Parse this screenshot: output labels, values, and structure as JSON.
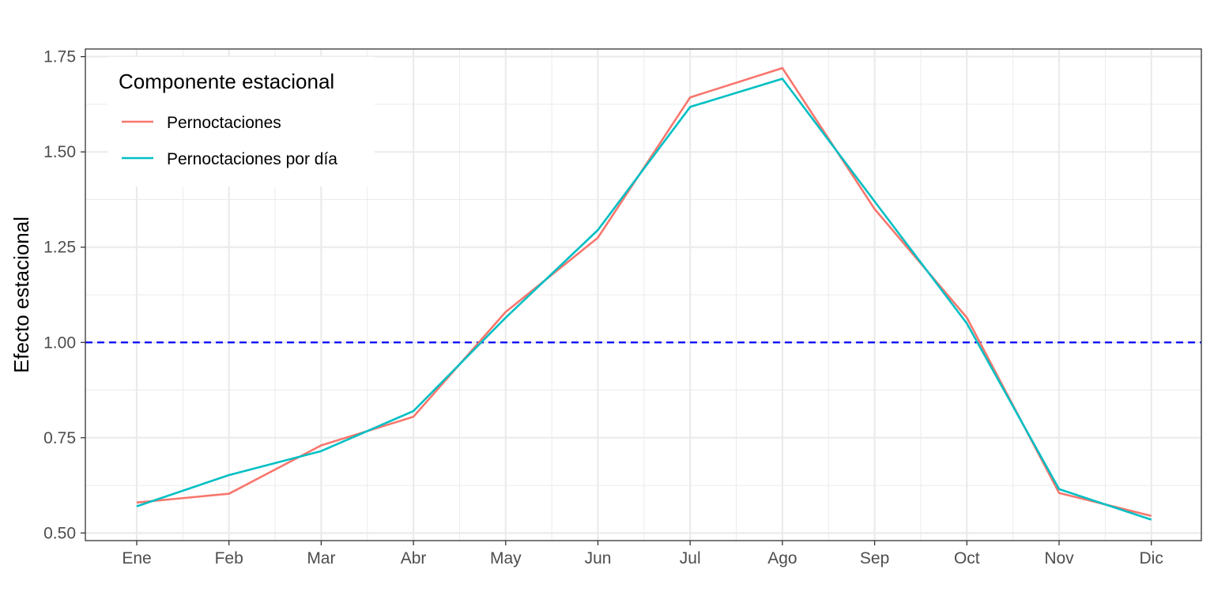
{
  "chart_data": {
    "type": "line",
    "ylabel": "Efecto estacional",
    "xlabel": "",
    "categories": [
      "Ene",
      "Feb",
      "Mar",
      "Abr",
      "May",
      "Jun",
      "Jul",
      "Ago",
      "Sep",
      "Oct",
      "Nov",
      "Dic"
    ],
    "ylim": [
      0.48,
      1.77
    ],
    "yticks": [
      0.5,
      0.75,
      1.0,
      1.25,
      1.5,
      1.75
    ],
    "ytick_labels": [
      "0.50",
      "0.75",
      "1.00",
      "1.25",
      "1.50",
      "1.75"
    ],
    "grid": true,
    "reference_line": {
      "y": 1.0,
      "style": "dashed",
      "color": "#0000ff"
    },
    "legend": {
      "title": "Componente estacional",
      "position": "top-left"
    },
    "series": [
      {
        "name": "Pernoctaciones",
        "color": "#f8766d",
        "values": [
          0.58,
          0.603,
          0.73,
          0.805,
          1.08,
          1.275,
          1.643,
          1.72,
          1.35,
          1.065,
          0.605,
          0.545
        ]
      },
      {
        "name": "Pernoctaciones por día",
        "color": "#00bfc4",
        "values": [
          0.57,
          0.652,
          0.715,
          0.82,
          1.065,
          1.295,
          1.618,
          1.692,
          1.37,
          1.05,
          0.615,
          0.535
        ]
      }
    ]
  }
}
